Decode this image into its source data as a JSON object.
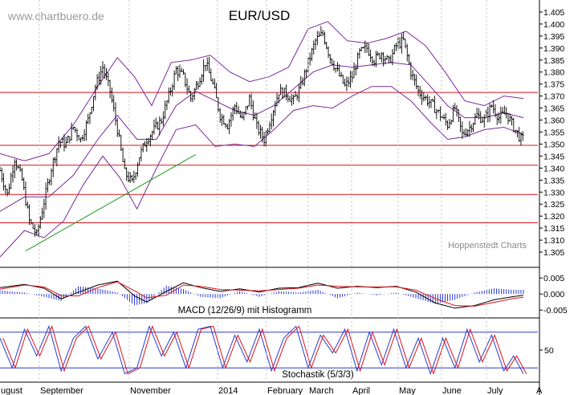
{
  "chart_data": [
    {
      "type": "candlestick",
      "title": "EUR/USD",
      "watermark": "www.chartbuero.de",
      "credit": "Hoppenstedt Charts",
      "ylim": [
        1.3,
        1.41
      ],
      "y_ticks": [
        "1.305",
        "1.310",
        "1.315",
        "1.320",
        "1.325",
        "1.330",
        "1.335",
        "1.340",
        "1.345",
        "1.350",
        "1.355",
        "1.360",
        "1.365",
        "1.370",
        "1.375",
        "1.380",
        "1.385",
        "1.390",
        "1.395",
        "1.400",
        "1.405"
      ],
      "x_labels": [
        "ugust",
        "September",
        "November",
        "2014",
        "February",
        "March",
        "April",
        "May",
        "June",
        "July",
        "A"
      ],
      "horizontal_lines": [
        1.3715,
        1.3495,
        1.3412,
        1.329,
        1.3172
      ],
      "trendline": {
        "from": [
          0,
          1.3055
        ],
        "to": [
          55,
          1.349
        ]
      },
      "close_path": [
        [
          0,
          1.339
        ],
        [
          6,
          1.329
        ],
        [
          12,
          1.344
        ],
        [
          18,
          1.335
        ],
        [
          24,
          1.318
        ],
        [
          30,
          1.312
        ],
        [
          36,
          1.326
        ],
        [
          42,
          1.34
        ],
        [
          48,
          1.351
        ],
        [
          54,
          1.35
        ],
        [
          60,
          1.357
        ],
        [
          66,
          1.352
        ],
        [
          72,
          1.36
        ],
        [
          78,
          1.374
        ],
        [
          84,
          1.382
        ],
        [
          90,
          1.372
        ],
        [
          96,
          1.356
        ],
        [
          102,
          1.338
        ],
        [
          108,
          1.334
        ],
        [
          114,
          1.345
        ],
        [
          120,
          1.352
        ],
        [
          126,
          1.356
        ],
        [
          132,
          1.36
        ],
        [
          138,
          1.37
        ],
        [
          144,
          1.381
        ],
        [
          150,
          1.378
        ],
        [
          156,
          1.369
        ],
        [
          162,
          1.376
        ],
        [
          168,
          1.384
        ],
        [
          174,
          1.375
        ],
        [
          180,
          1.362
        ],
        [
          186,
          1.358
        ],
        [
          192,
          1.366
        ],
        [
          198,
          1.36
        ],
        [
          204,
          1.369
        ],
        [
          210,
          1.357
        ],
        [
          216,
          1.352
        ],
        [
          222,
          1.362
        ],
        [
          228,
          1.372
        ],
        [
          234,
          1.371
        ],
        [
          240,
          1.368
        ],
        [
          246,
          1.374
        ],
        [
          252,
          1.384
        ],
        [
          258,
          1.393
        ],
        [
          264,
          1.396
        ],
        [
          270,
          1.386
        ],
        [
          276,
          1.38
        ],
        [
          282,
          1.374
        ],
        [
          288,
          1.378
        ],
        [
          294,
          1.388
        ],
        [
          300,
          1.39
        ],
        [
          306,
          1.385
        ],
        [
          312,
          1.388
        ],
        [
          318,
          1.384
        ],
        [
          324,
          1.391
        ],
        [
          330,
          1.393
        ],
        [
          336,
          1.38
        ],
        [
          342,
          1.372
        ],
        [
          348,
          1.369
        ],
        [
          354,
          1.366
        ],
        [
          360,
          1.362
        ],
        [
          366,
          1.358
        ],
        [
          372,
          1.365
        ],
        [
          378,
          1.354
        ],
        [
          384,
          1.357
        ],
        [
          390,
          1.362
        ],
        [
          396,
          1.36
        ],
        [
          402,
          1.366
        ],
        [
          408,
          1.361
        ],
        [
          414,
          1.363
        ],
        [
          420,
          1.357
        ],
        [
          426,
          1.352
        ]
      ],
      "upper_band": [
        [
          0,
          1.346
        ],
        [
          20,
          1.343
        ],
        [
          40,
          1.346
        ],
        [
          60,
          1.358
        ],
        [
          80,
          1.374
        ],
        [
          96,
          1.386
        ],
        [
          110,
          1.378
        ],
        [
          124,
          1.366
        ],
        [
          140,
          1.384
        ],
        [
          156,
          1.385
        ],
        [
          172,
          1.387
        ],
        [
          188,
          1.38
        ],
        [
          204,
          1.376
        ],
        [
          220,
          1.378
        ],
        [
          236,
          1.382
        ],
        [
          252,
          1.398
        ],
        [
          268,
          1.401
        ],
        [
          284,
          1.393
        ],
        [
          300,
          1.392
        ],
        [
          316,
          1.394
        ],
        [
          332,
          1.397
        ],
        [
          348,
          1.391
        ],
        [
          364,
          1.38
        ],
        [
          380,
          1.368
        ],
        [
          396,
          1.366
        ],
        [
          412,
          1.37
        ],
        [
          428,
          1.369
        ]
      ],
      "lower_band": [
        [
          0,
          1.303
        ],
        [
          20,
          1.314
        ],
        [
          36,
          1.311
        ],
        [
          52,
          1.318
        ],
        [
          68,
          1.333
        ],
        [
          84,
          1.345
        ],
        [
          98,
          1.336
        ],
        [
          112,
          1.323
        ],
        [
          128,
          1.34
        ],
        [
          144,
          1.356
        ],
        [
          160,
          1.358
        ],
        [
          176,
          1.349
        ],
        [
          192,
          1.35
        ],
        [
          208,
          1.349
        ],
        [
          224,
          1.356
        ],
        [
          240,
          1.364
        ],
        [
          256,
          1.366
        ],
        [
          272,
          1.365
        ],
        [
          288,
          1.37
        ],
        [
          304,
          1.374
        ],
        [
          320,
          1.374
        ],
        [
          336,
          1.368
        ],
        [
          352,
          1.359
        ],
        [
          366,
          1.352
        ],
        [
          380,
          1.353
        ],
        [
          396,
          1.356
        ],
        [
          412,
          1.357
        ],
        [
          428,
          1.354
        ]
      ],
      "mid_band": [
        [
          0,
          1.322
        ],
        [
          20,
          1.328
        ],
        [
          40,
          1.328
        ],
        [
          60,
          1.337
        ],
        [
          80,
          1.352
        ],
        [
          96,
          1.362
        ],
        [
          112,
          1.352
        ],
        [
          128,
          1.352
        ],
        [
          144,
          1.366
        ],
        [
          160,
          1.372
        ],
        [
          176,
          1.368
        ],
        [
          192,
          1.364
        ],
        [
          208,
          1.362
        ],
        [
          224,
          1.366
        ],
        [
          240,
          1.373
        ],
        [
          256,
          1.38
        ],
        [
          272,
          1.383
        ],
        [
          288,
          1.382
        ],
        [
          304,
          1.383
        ],
        [
          320,
          1.384
        ],
        [
          336,
          1.383
        ],
        [
          352,
          1.374
        ],
        [
          366,
          1.366
        ],
        [
          380,
          1.361
        ],
        [
          396,
          1.361
        ],
        [
          412,
          1.363
        ],
        [
          428,
          1.361
        ]
      ]
    },
    {
      "type": "line",
      "title": "MACD (12/26/9) mit Histogramm",
      "ylim": [
        -0.0072,
        0.0073
      ],
      "y_ticks": [
        "0.005",
        "0.000",
        "-0.005"
      ],
      "series": [
        {
          "values": [
            [
              0,
              0.002
            ],
            [
              20,
              0.003
            ],
            [
              36,
              0.0018
            ],
            [
              50,
              -0.0015
            ],
            [
              64,
              0.0005
            ],
            [
              80,
              0.0028
            ],
            [
              96,
              0.004
            ],
            [
              110,
              -0.0006
            ],
            [
              120,
              -0.0025
            ],
            [
              136,
              0.0008
            ],
            [
              150,
              0.0035
            ],
            [
              164,
              0.002
            ],
            [
              180,
              0.0008
            ],
            [
              196,
              0.0016
            ],
            [
              212,
              0.0006
            ],
            [
              228,
              0.0018
            ],
            [
              244,
              0.002
            ],
            [
              260,
              0.0034
            ],
            [
              276,
              0.0018
            ],
            [
              292,
              0.0024
            ],
            [
              308,
              0.002
            ],
            [
              324,
              0.0024
            ],
            [
              340,
              0.0006
            ],
            [
              356,
              -0.0028
            ],
            [
              372,
              -0.0044
            ],
            [
              388,
              -0.0036
            ],
            [
              404,
              -0.0018
            ],
            [
              420,
              -0.0008
            ],
            [
              428,
              -0.0004
            ]
          ]
        },
        {
          "values": [
            [
              0,
              0.0015
            ],
            [
              20,
              0.0028
            ],
            [
              36,
              0.0022
            ],
            [
              50,
              -0.0005
            ],
            [
              64,
              -0.0006
            ],
            [
              80,
              0.002
            ],
            [
              96,
              0.0038
            ],
            [
              110,
              0.001
            ],
            [
              120,
              -0.0012
            ],
            [
              136,
              -0.0004
            ],
            [
              150,
              0.0028
            ],
            [
              164,
              0.0024
            ],
            [
              180,
              0.0014
            ],
            [
              196,
              0.0012
            ],
            [
              212,
              0.001
            ],
            [
              228,
              0.0014
            ],
            [
              244,
              0.0018
            ],
            [
              260,
              0.0028
            ],
            [
              276,
              0.0024
            ],
            [
              292,
              0.0022
            ],
            [
              308,
              0.0022
            ],
            [
              324,
              0.0022
            ],
            [
              340,
              0.0012
            ],
            [
              356,
              -0.0014
            ],
            [
              372,
              -0.0036
            ],
            [
              388,
              -0.0038
            ],
            [
              404,
              -0.0026
            ],
            [
              420,
              -0.0014
            ],
            [
              428,
              -0.001
            ]
          ]
        }
      ]
    },
    {
      "type": "line",
      "title": "Stochastik (5/3/3)",
      "ylim": [
        0,
        100
      ],
      "y_ticks": [
        "50"
      ],
      "levels": [
        80,
        20
      ],
      "series": [
        {
          "values": [
            [
              0,
              70
            ],
            [
              10,
              20
            ],
            [
              20,
              85
            ],
            [
              30,
              40
            ],
            [
              40,
              90
            ],
            [
              50,
              15
            ],
            [
              60,
              70
            ],
            [
              70,
              90
            ],
            [
              80,
              35
            ],
            [
              92,
              80
            ],
            [
              102,
              10
            ],
            [
              112,
              20
            ],
            [
              122,
              90
            ],
            [
              132,
              40
            ],
            [
              142,
              80
            ],
            [
              152,
              20
            ],
            [
              162,
              85
            ],
            [
              172,
              90
            ],
            [
              182,
              20
            ],
            [
              192,
              75
            ],
            [
              202,
              30
            ],
            [
              212,
              85
            ],
            [
              222,
              15
            ],
            [
              232,
              70
            ],
            [
              242,
              90
            ],
            [
              252,
              20
            ],
            [
              262,
              75
            ],
            [
              272,
              45
            ],
            [
              282,
              85
            ],
            [
              292,
              15
            ],
            [
              302,
              80
            ],
            [
              312,
              25
            ],
            [
              322,
              85
            ],
            [
              332,
              20
            ],
            [
              342,
              70
            ],
            [
              352,
              10
            ],
            [
              362,
              70
            ],
            [
              372,
              20
            ],
            [
              382,
              85
            ],
            [
              392,
              30
            ],
            [
              402,
              75
            ],
            [
              412,
              15
            ],
            [
              420,
              40
            ],
            [
              428,
              10
            ]
          ]
        }
      ]
    }
  ]
}
